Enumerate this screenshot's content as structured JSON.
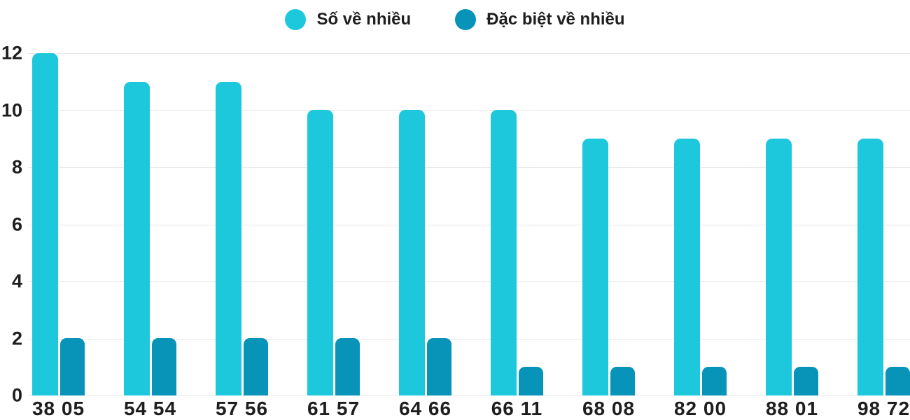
{
  "chart_data": {
    "type": "bar",
    "categories": [
      "38 05",
      "54 54",
      "57 56",
      "61 57",
      "64 66",
      "66 11",
      "68 08",
      "82 00",
      "88 01",
      "98 72"
    ],
    "series": [
      {
        "name": "Số về nhiều",
        "color": "#1DC8DC",
        "values": [
          12,
          11,
          11,
          10,
          10,
          10,
          9,
          9,
          9,
          9
        ]
      },
      {
        "name": "Đặc biệt về nhiều",
        "color": "#0894B8",
        "values": [
          2,
          2,
          2,
          2,
          2,
          1,
          1,
          1,
          1,
          1
        ]
      }
    ],
    "title": "",
    "xlabel": "",
    "ylabel": "",
    "ylim": [
      0,
      12
    ],
    "yticks": [
      0,
      2,
      4,
      6,
      8,
      10,
      12
    ],
    "grid": true,
    "legend_position": "top"
  },
  "colors": {
    "background": "#FFFFFF",
    "text": "#1E1E1E",
    "gridline": "#E6E6E6"
  }
}
